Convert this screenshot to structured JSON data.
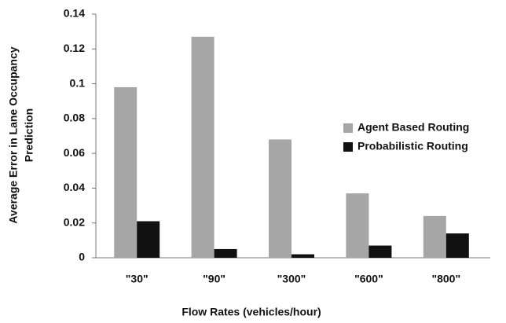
{
  "chart_data": {
    "type": "bar",
    "xlabel": "Flow Rates (vehicles/hour)",
    "ylabel": [
      "Average Error in Lane Occupancy",
      "Prediction"
    ],
    "categories": [
      "\"30\"",
      "\"90\"",
      "\"300\"",
      "\"600\"",
      "\"800\""
    ],
    "series": [
      {
        "name": "Agent Based Routing",
        "color": "#a6a6a6",
        "values": [
          0.098,
          0.127,
          0.068,
          0.037,
          0.024
        ]
      },
      {
        "name": "Probabilistic Routing",
        "color": "#111111",
        "values": [
          0.021,
          0.005,
          0.002,
          0.007,
          0.014
        ]
      }
    ],
    "ylim": [
      0,
      0.14
    ],
    "yticks": [
      0,
      0.02,
      0.04,
      0.06,
      0.08,
      0.1,
      0.12,
      0.14
    ],
    "grid": false,
    "legend": "right"
  }
}
